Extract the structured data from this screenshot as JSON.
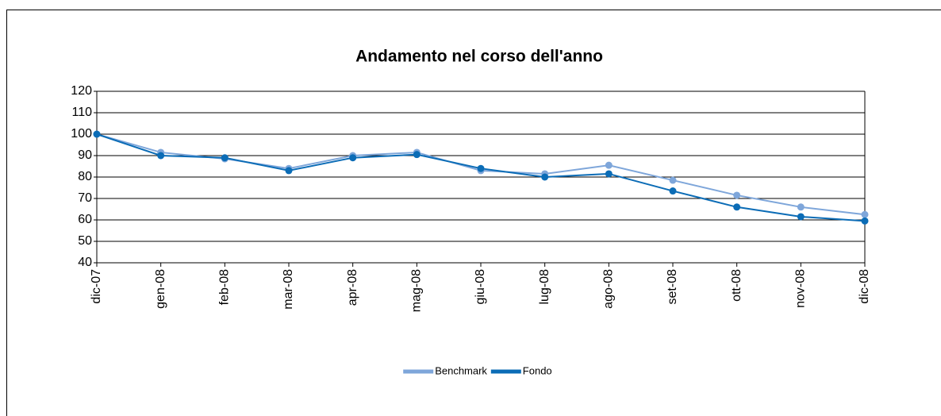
{
  "chart_data": {
    "type": "line",
    "title": "Andamento nel corso dell'anno",
    "categories": [
      "dic-07",
      "gen-08",
      "feb-08",
      "mar-08",
      "apr-08",
      "mag-08",
      "giu-08",
      "lug-08",
      "ago-08",
      "set-08",
      "ott-08",
      "nov-08",
      "dic-08"
    ],
    "series": [
      {
        "name": "Benchmark",
        "color": "#7ea6da",
        "values": [
          100,
          91.5,
          88.5,
          84,
          90,
          91.5,
          83,
          81.5,
          85.5,
          78.5,
          71.5,
          66,
          62.5
        ]
      },
      {
        "name": "Fondo",
        "color": "#0b6cb6",
        "values": [
          100,
          90,
          89,
          83,
          89,
          90.5,
          84,
          80,
          81.5,
          73.5,
          66,
          61.5,
          59.5
        ]
      }
    ],
    "ylim": [
      40,
      120
    ],
    "yticks": [
      40,
      50,
      60,
      70,
      80,
      90,
      100,
      110,
      120
    ],
    "grid": true,
    "legend": "bottom"
  }
}
